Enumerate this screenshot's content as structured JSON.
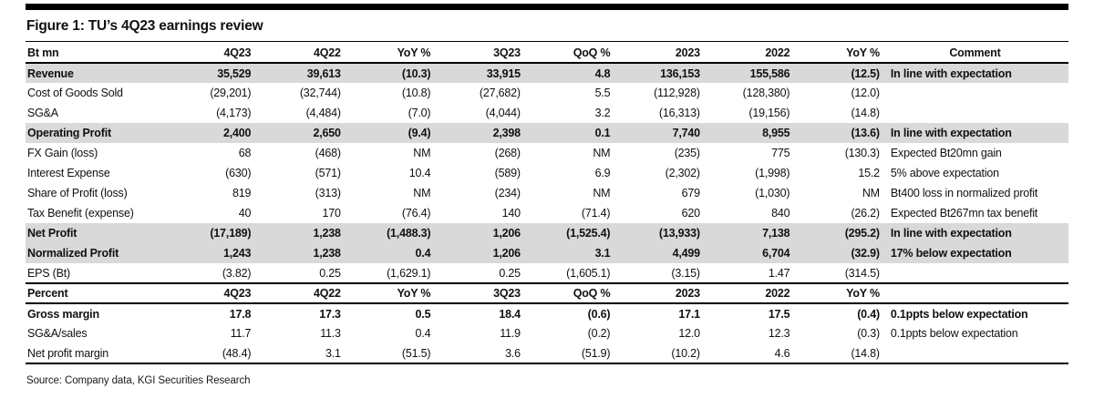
{
  "figure": {
    "title": "Figure 1: TU’s 4Q23 earnings review",
    "source": "Source: Company data, KGI Securities Research"
  },
  "colors": {
    "row_shade": "#d9d9d9",
    "rule": "#000000",
    "text": "#111111"
  },
  "table": {
    "header": [
      "Bt mn",
      "4Q23",
      "4Q22",
      "YoY %",
      "3Q23",
      "QoQ %",
      "2023",
      "2022",
      "YoY %",
      "Comment"
    ],
    "rows": [
      {
        "kind": "data",
        "bold": true,
        "shaded": true,
        "cells": [
          "Revenue",
          "35,529",
          "39,613",
          "(10.3)",
          "33,915",
          "4.8",
          "136,153",
          "155,586",
          "(12.5)",
          "In line with expectation"
        ]
      },
      {
        "kind": "data",
        "bold": false,
        "shaded": false,
        "cells": [
          "Cost of Goods Sold",
          "(29,201)",
          "(32,744)",
          "(10.8)",
          "(27,682)",
          "5.5",
          "(112,928)",
          "(128,380)",
          "(12.0)",
          ""
        ]
      },
      {
        "kind": "data",
        "bold": false,
        "shaded": false,
        "cells": [
          "SG&A",
          "(4,173)",
          "(4,484)",
          "(7.0)",
          "(4,044)",
          "3.2",
          "(16,313)",
          "(19,156)",
          "(14.8)",
          ""
        ]
      },
      {
        "kind": "data",
        "bold": true,
        "shaded": true,
        "cells": [
          "Operating Profit",
          "2,400",
          "2,650",
          "(9.4)",
          "2,398",
          "0.1",
          "7,740",
          "8,955",
          "(13.6)",
          "In line with expectation"
        ]
      },
      {
        "kind": "data",
        "bold": false,
        "shaded": false,
        "cells": [
          "FX Gain (loss)",
          "68",
          "(468)",
          "NM",
          "(268)",
          "NM",
          "(235)",
          "775",
          "(130.3)",
          "Expected Bt20mn gain"
        ]
      },
      {
        "kind": "data",
        "bold": false,
        "shaded": false,
        "cells": [
          "Interest Expense",
          "(630)",
          "(571)",
          "10.4",
          "(589)",
          "6.9",
          "(2,302)",
          "(1,998)",
          "15.2",
          "5% above expectation"
        ]
      },
      {
        "kind": "data",
        "bold": false,
        "shaded": false,
        "cells": [
          "Share of Profit (loss)",
          "819",
          "(313)",
          "NM",
          "(234)",
          "NM",
          "679",
          "(1,030)",
          "NM",
          "Bt400 loss in normalized profit"
        ]
      },
      {
        "kind": "data",
        "bold": false,
        "shaded": false,
        "cells": [
          "Tax Benefit (expense)",
          "40",
          "170",
          "(76.4)",
          "140",
          "(71.4)",
          "620",
          "840",
          "(26.2)",
          "Expected Bt267mn tax benefit"
        ]
      },
      {
        "kind": "data",
        "bold": true,
        "shaded": true,
        "cells": [
          "Net Profit",
          "(17,189)",
          "1,238",
          "(1,488.3)",
          "1,206",
          "(1,525.4)",
          "(13,933)",
          "7,138",
          "(295.2)",
          "In line with expectation"
        ]
      },
      {
        "kind": "data",
        "bold": true,
        "shaded": true,
        "cells": [
          "Normalized Profit",
          "1,243",
          "1,238",
          "0.4",
          "1,206",
          "3.1",
          "4,499",
          "6,704",
          "(32.9)",
          "17% below expectation"
        ]
      },
      {
        "kind": "data",
        "bold": false,
        "shaded": false,
        "cells": [
          "EPS (Bt)",
          "(3.82)",
          "0.25",
          "(1,629.1)",
          "0.25",
          "(1,605.1)",
          "(3.15)",
          "1.47",
          "(314.5)",
          ""
        ]
      },
      {
        "kind": "section",
        "bold": true,
        "shaded": false,
        "cells": [
          "Percent",
          "4Q23",
          "4Q22",
          "YoY %",
          "3Q23",
          "QoQ %",
          "2023",
          "2022",
          "YoY %",
          ""
        ]
      },
      {
        "kind": "data",
        "bold": true,
        "shaded": false,
        "cells": [
          "Gross margin",
          "17.8",
          "17.3",
          "0.5",
          "18.4",
          "(0.6)",
          "17.1",
          "17.5",
          "(0.4)",
          "0.1ppts below expectation"
        ]
      },
      {
        "kind": "data",
        "bold": false,
        "shaded": false,
        "cells": [
          "SG&A/sales",
          "11.7",
          "11.3",
          "0.4",
          "11.9",
          "(0.2)",
          "12.0",
          "12.3",
          "(0.3)",
          "0.1ppts below expectation"
        ]
      },
      {
        "kind": "data",
        "bold": false,
        "shaded": false,
        "cells": [
          "Net profit margin",
          "(48.4)",
          "3.1",
          "(51.5)",
          "3.6",
          "(51.9)",
          "(10.2)",
          "4.6",
          "(14.8)",
          ""
        ]
      }
    ]
  }
}
